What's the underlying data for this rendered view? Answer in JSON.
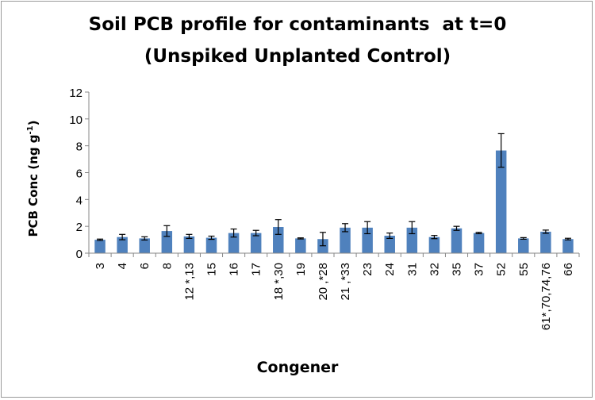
{
  "chart_data": {
    "type": "bar",
    "title": "Soil PCB profile for contaminants  at t=0",
    "subtitle": "(Unspiked Unplanted Control)",
    "xlabel": "Congener",
    "ylabel": {
      "main": "PCB Conc (ng g",
      "sup": "-1",
      "end": ")"
    },
    "ylim": [
      0,
      12
    ],
    "yticks": [
      0,
      2,
      4,
      6,
      8,
      10,
      12
    ],
    "bar_color": "#4f81bd",
    "error_bar_color": "#000000",
    "grid": false,
    "categories": [
      "3",
      "4",
      "6",
      "8",
      "12 *,13",
      "15",
      "16",
      "17",
      "18 *,30",
      "19",
      "20 ,*28",
      "21 ,*33",
      "23",
      "24",
      "31",
      "32",
      "35",
      "37",
      "52",
      "55",
      "61*,70,74,76",
      "66"
    ],
    "values": [
      1.0,
      1.2,
      1.1,
      1.65,
      1.25,
      1.15,
      1.5,
      1.5,
      1.95,
      1.1,
      1.05,
      1.9,
      1.9,
      1.3,
      1.9,
      1.2,
      1.85,
      1.5,
      7.65,
      1.1,
      1.6,
      1.05
    ],
    "errors": [
      0.05,
      0.2,
      0.12,
      0.4,
      0.15,
      0.12,
      0.3,
      0.2,
      0.55,
      0.04,
      0.5,
      0.3,
      0.45,
      0.2,
      0.45,
      0.12,
      0.15,
      0.05,
      1.25,
      0.06,
      0.12,
      0.06
    ]
  }
}
